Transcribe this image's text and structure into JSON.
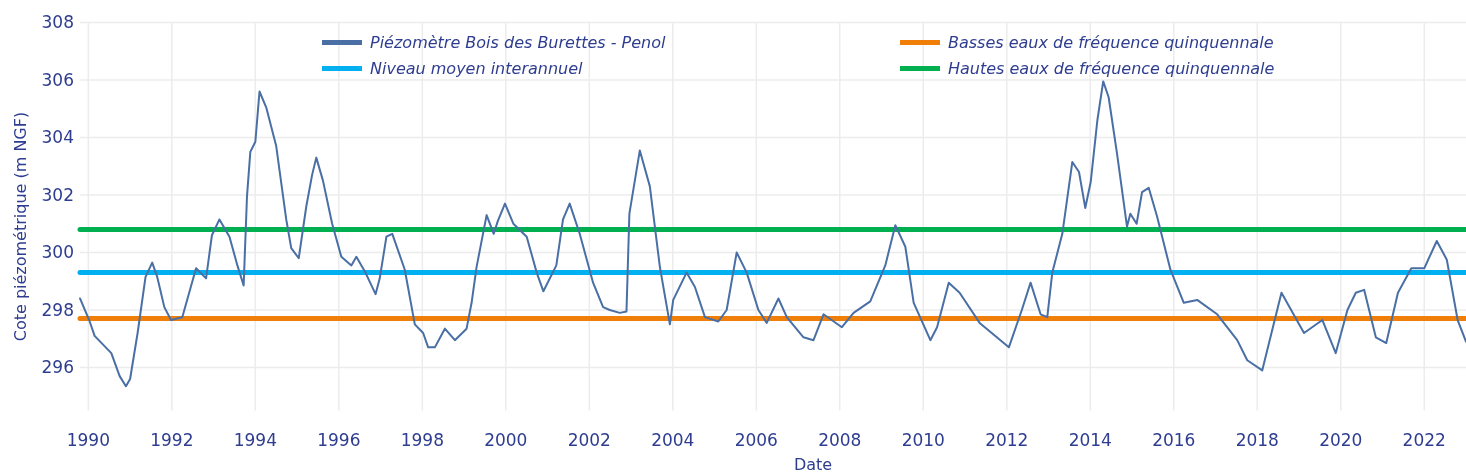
{
  "chart_data": {
    "type": "line",
    "xlabel": "Date",
    "ylabel": "Cote piézométrique (m NGF)",
    "xlim": [
      1989.8,
      2023.0
    ],
    "xticks": [
      1990,
      1992,
      1994,
      1996,
      1998,
      2000,
      2002,
      2004,
      2006,
      2008,
      2010,
      2012,
      2014,
      2016,
      2018,
      2020,
      2022
    ],
    "ylim": [
      294.5,
      308
    ],
    "yticks": [
      296,
      298,
      300,
      302,
      304,
      306,
      308
    ],
    "grid": true,
    "legend": "top",
    "marker": "none",
    "line_style": "solid",
    "series": [
      {
        "name": "Piézomètre Bois des Burettes - Penol",
        "color": "#4a6fa5",
        "x": [
          1989.8,
          1990.02,
          1990.15,
          1990.55,
          1990.75,
          1990.9,
          1991.0,
          1991.18,
          1991.37,
          1991.53,
          1991.65,
          1991.82,
          1991.98,
          1992.25,
          1992.58,
          1992.82,
          1992.96,
          1993.14,
          1993.38,
          1993.57,
          1993.72,
          1993.8,
          1993.88,
          1994.0,
          1994.1,
          1994.26,
          1994.5,
          1994.74,
          1994.86,
          1995.04,
          1995.22,
          1995.36,
          1995.46,
          1995.62,
          1995.84,
          1996.06,
          1996.3,
          1996.42,
          1996.62,
          1996.88,
          1996.98,
          1997.14,
          1997.28,
          1997.58,
          1997.82,
          1998.02,
          1998.14,
          1998.3,
          1998.54,
          1998.78,
          1999.06,
          1999.18,
          1999.3,
          1999.54,
          1999.71,
          1999.81,
          1999.98,
          2000.18,
          2000.5,
          2000.74,
          2000.9,
          2001.21,
          2001.37,
          2001.53,
          2001.77,
          2002.09,
          2002.33,
          2002.49,
          2002.73,
          2002.89,
          2002.96,
          2003.21,
          2003.45,
          2003.69,
          2003.93,
          2004.01,
          2004.33,
          2004.53,
          2004.77,
          2005.09,
          2005.29,
          2005.53,
          2005.77,
          2006.05,
          2006.25,
          2006.53,
          2006.73,
          2007.13,
          2007.37,
          2007.61,
          2008.05,
          2008.33,
          2008.73,
          2009.09,
          2009.33,
          2009.57,
          2009.77,
          2010.17,
          2010.33,
          2010.61,
          2010.87,
          2011.35,
          2012.05,
          2012.36,
          2012.57,
          2012.81,
          2012.97,
          2013.09,
          2013.33,
          2013.57,
          2013.73,
          2013.88,
          2014.01,
          2014.17,
          2014.31,
          2014.44,
          2014.64,
          2014.88,
          2014.96,
          2015.11,
          2015.24,
          2015.4,
          2015.6,
          2015.92,
          2016.24,
          2016.56,
          2017.04,
          2017.52,
          2017.76,
          2018.12,
          2018.4,
          2018.58,
          2019.12,
          2019.56,
          2019.88,
          2020.16,
          2020.36,
          2020.56,
          2020.84,
          2021.09,
          2021.37,
          2021.69,
          2022.0,
          2022.3,
          2022.54,
          2022.8,
          2023.0
        ],
        "values": [
          298.4,
          297.65,
          297.1,
          296.5,
          295.7,
          295.35,
          295.6,
          297.2,
          299.15,
          299.65,
          299.15,
          298.1,
          297.65,
          297.75,
          299.45,
          299.1,
          300.6,
          301.15,
          300.55,
          299.55,
          298.85,
          301.95,
          303.5,
          303.85,
          305.6,
          305.05,
          303.7,
          301.15,
          300.15,
          299.8,
          301.6,
          302.7,
          303.3,
          302.5,
          301.0,
          299.85,
          299.55,
          299.85,
          299.35,
          298.55,
          299.1,
          300.55,
          300.65,
          299.4,
          297.5,
          297.2,
          296.7,
          296.7,
          297.35,
          296.95,
          297.35,
          298.25,
          299.5,
          301.3,
          300.65,
          301.1,
          301.7,
          301.0,
          300.55,
          299.3,
          298.65,
          299.55,
          301.15,
          301.7,
          300.65,
          298.95,
          298.1,
          298.0,
          297.9,
          297.95,
          301.35,
          303.55,
          302.3,
          299.5,
          297.5,
          298.35,
          299.3,
          298.8,
          297.75,
          297.6,
          298.0,
          300.0,
          299.3,
          298.0,
          297.55,
          298.4,
          297.75,
          297.05,
          296.95,
          297.85,
          297.4,
          297.9,
          298.3,
          299.55,
          300.95,
          300.2,
          298.25,
          296.95,
          297.4,
          298.95,
          298.6,
          297.55,
          296.7,
          298.0,
          298.95,
          297.85,
          297.75,
          299.3,
          300.65,
          303.15,
          302.8,
          301.55,
          302.45,
          304.6,
          305.95,
          305.4,
          303.45,
          300.9,
          301.35,
          301.0,
          302.1,
          302.25,
          301.25,
          299.4,
          298.25,
          298.35,
          297.85,
          296.95,
          296.25,
          295.9,
          297.55,
          298.6,
          297.2,
          297.65,
          296.5,
          298.0,
          298.6,
          298.7,
          297.05,
          296.85,
          298.6,
          299.45,
          299.45,
          300.4,
          299.75,
          297.65,
          296.9
        ]
      },
      {
        "name": "Niveau moyen interannuel",
        "color": "#00b0f0",
        "x": [
          1989.8,
          2023.0
        ],
        "values": [
          299.3,
          299.3
        ]
      },
      {
        "name": "Basses eaux de fréquence quinquennale",
        "color": "#f07f09",
        "x": [
          1989.8,
          2023.0
        ],
        "values": [
          297.7,
          297.7
        ]
      },
      {
        "name": "Hautes eaux de fréquence quinquennale",
        "color": "#00b050",
        "x": [
          1989.8,
          2023.0
        ],
        "values": [
          300.8,
          300.8
        ]
      }
    ]
  }
}
